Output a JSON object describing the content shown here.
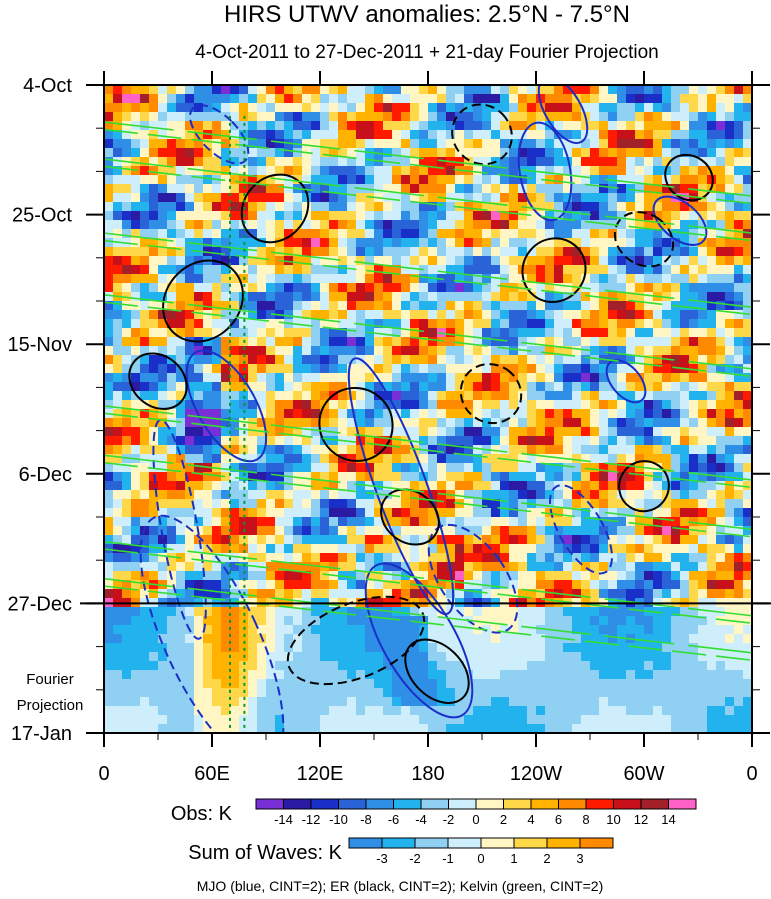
{
  "chart_data": {
    "type": "heatmap",
    "title": "HIRS UTWV anomalies: 2.5°N - 7.5°N",
    "subtitle": "4-Oct-2011 to 27-Dec-2011 + 21-day Fourier Projection",
    "x_ticks": [
      "0",
      "60E",
      "120E",
      "180",
      "120W",
      "60W",
      "0"
    ],
    "x_tick_lon": [
      0,
      60,
      120,
      180,
      240,
      300,
      360
    ],
    "xlim": [
      0,
      360
    ],
    "y_ticks": [
      "4-Oct",
      "25-Oct",
      "15-Nov",
      "6-Dec",
      "27-Dec",
      "17-Jan"
    ],
    "y_tick_day": [
      0,
      21,
      42,
      63,
      84,
      105
    ],
    "ylim_days": [
      0,
      105
    ],
    "obs_end_day": 84,
    "fourier_label_line1": "Fourier",
    "fourier_label_line2": "Projection",
    "obs_colorbar": {
      "label": "Obs: K",
      "levels": [
        -14,
        -12,
        -10,
        -8,
        -6,
        -4,
        -2,
        0,
        2,
        4,
        6,
        8,
        10,
        12,
        14
      ],
      "colors": [
        "#7a2fd6",
        "#2b1aa3",
        "#1a2fc7",
        "#2a62d8",
        "#2f8fe6",
        "#22b3ee",
        "#8fd0f3",
        "#cfeefb",
        "#fff6c4",
        "#ffd84a",
        "#ffb300",
        "#ff8a00",
        "#ff1a00",
        "#c8101a",
        "#a2202a",
        "#ff62c6"
      ]
    },
    "waves_colorbar": {
      "label": "Sum of Waves: K",
      "levels": [
        -3,
        -2,
        -1,
        0,
        1,
        2,
        3
      ],
      "colors": [
        "#2f8fe6",
        "#22b3ee",
        "#8fd0f3",
        "#cfeefb",
        "#fff6c4",
        "#ffd84a",
        "#ffb300",
        "#ff8a00"
      ]
    },
    "legend_note": "MJO (blue, CINT=2); ER (black, CINT=2); Kelvin (green, CINT=2)",
    "contour_colors": {
      "mjo": "#1a2fc7",
      "er": "#000000",
      "kelvin": "#33dd33",
      "marker": "#009933"
    },
    "marker_lon": [
      70,
      78
    ],
    "mjo_contours": [
      {
        "lon": 64,
        "day": 8,
        "rl": 10,
        "rd": 6,
        "rot": -45,
        "dash": true
      },
      {
        "lon": 68,
        "day": 52,
        "rl": 16,
        "rd": 10,
        "rot": -30,
        "dash": false
      },
      {
        "lon": 60,
        "day": 90,
        "rl": 26,
        "rd": 22,
        "rot": -25,
        "dash": true
      },
      {
        "lon": 42,
        "day": 72,
        "rl": 10,
        "rd": 18,
        "rot": -10,
        "dash": true
      },
      {
        "lon": 165,
        "day": 65,
        "rl": 14,
        "rd": 22,
        "rot": -20,
        "dash": false
      },
      {
        "lon": 175,
        "day": 90,
        "rl": 20,
        "rd": 14,
        "rot": -30,
        "dash": false
      },
      {
        "lon": 205,
        "day": 80,
        "rl": 18,
        "rd": 10,
        "rot": -35,
        "dash": true
      },
      {
        "lon": 245,
        "day": 14,
        "rl": 14,
        "rd": 8,
        "rot": -10,
        "dash": false
      },
      {
        "lon": 255,
        "day": 4,
        "rl": 10,
        "rd": 6,
        "rot": -30,
        "dash": false
      },
      {
        "lon": 320,
        "day": 22,
        "rl": 10,
        "rd": 5,
        "rot": -50,
        "dash": false
      },
      {
        "lon": 265,
        "day": 72,
        "rl": 12,
        "rd": 8,
        "rot": -30,
        "dash": true
      },
      {
        "lon": 290,
        "day": 48,
        "rl": 8,
        "rd": 4,
        "rot": -40,
        "dash": false
      }
    ],
    "er_contours": [
      {
        "lon": 55,
        "day": 35,
        "rl": 24,
        "rd": 6,
        "rot": -48,
        "dash": false
      },
      {
        "lon": 95,
        "day": 20,
        "rl": 20,
        "rd": 5,
        "rot": -48,
        "dash": false
      },
      {
        "lon": 140,
        "day": 55,
        "rl": 20,
        "rd": 6,
        "rot": -48,
        "dash": false
      },
      {
        "lon": 170,
        "day": 70,
        "rl": 14,
        "rd": 5,
        "rot": -52,
        "dash": false
      },
      {
        "lon": 215,
        "day": 50,
        "rl": 16,
        "rd": 5,
        "rot": -55,
        "dash": true
      },
      {
        "lon": 250,
        "day": 30,
        "rl": 18,
        "rd": 5,
        "rot": -50,
        "dash": false
      },
      {
        "lon": 300,
        "day": 25,
        "rl": 14,
        "rd": 5,
        "rot": -55,
        "dash": true
      },
      {
        "lon": 325,
        "day": 15,
        "rl": 12,
        "rd": 4,
        "rot": -55,
        "dash": false
      },
      {
        "lon": 300,
        "day": 65,
        "rl": 14,
        "rd": 4,
        "rot": -55,
        "dash": false
      },
      {
        "lon": 210,
        "day": 8,
        "rl": 16,
        "rd": 5,
        "rot": -45,
        "dash": true
      },
      {
        "lon": 30,
        "day": 48,
        "rl": 14,
        "rd": 5,
        "rot": -50,
        "dash": false
      },
      {
        "lon": 140,
        "day": 90,
        "rl": 40,
        "rd": 6,
        "rot": -22,
        "dash": true
      },
      {
        "lon": 185,
        "day": 95,
        "rl": 14,
        "rd": 6,
        "rot": -45,
        "dash": false
      }
    ],
    "kelvin_rows": [
      6,
      12,
      24,
      34,
      52,
      60,
      74,
      80
    ],
    "kelvin_slope_days_per_360": 12
  }
}
